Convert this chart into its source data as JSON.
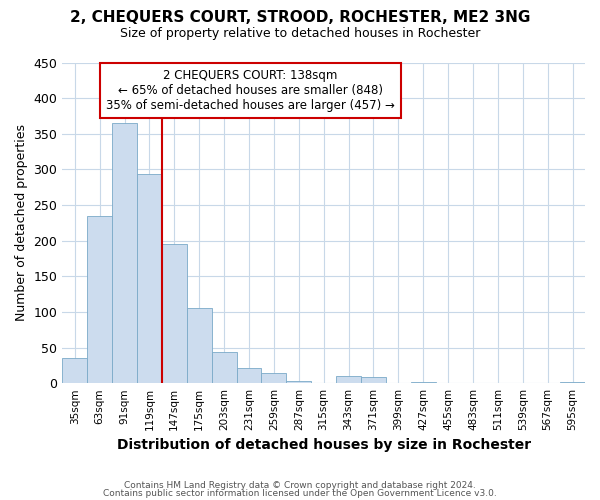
{
  "title1": "2, CHEQUERS COURT, STROOD, ROCHESTER, ME2 3NG",
  "title2": "Size of property relative to detached houses in Rochester",
  "xlabel": "Distribution of detached houses by size in Rochester",
  "ylabel": "Number of detached properties",
  "bar_color": "#ccdcee",
  "bar_edge_color": "#7aaac8",
  "bins": [
    "35sqm",
    "63sqm",
    "91sqm",
    "119sqm",
    "147sqm",
    "175sqm",
    "203sqm",
    "231sqm",
    "259sqm",
    "287sqm",
    "315sqm",
    "343sqm",
    "371sqm",
    "399sqm",
    "427sqm",
    "455sqm",
    "483sqm",
    "511sqm",
    "539sqm",
    "567sqm",
    "595sqm"
  ],
  "values": [
    35,
    235,
    365,
    293,
    196,
    105,
    44,
    22,
    14,
    3,
    0,
    10,
    9,
    0,
    2,
    0,
    0,
    0,
    0,
    0,
    2
  ],
  "vline_color": "#cc0000",
  "vline_bin_index": 4,
  "annotation_title": "2 CHEQUERS COURT: 138sqm",
  "annotation_line1": "← 65% of detached houses are smaller (848)",
  "annotation_line2": "35% of semi-detached houses are larger (457) →",
  "annotation_box_color": "#cc0000",
  "ylim": [
    0,
    450
  ],
  "yticks": [
    0,
    50,
    100,
    150,
    200,
    250,
    300,
    350,
    400,
    450
  ],
  "footnote1": "Contains HM Land Registry data © Crown copyright and database right 2024.",
  "footnote2": "Contains public sector information licensed under the Open Government Licence v3.0.",
  "bg_color": "#ffffff",
  "plot_bg_color": "#ffffff",
  "grid_color": "#c8d8e8"
}
